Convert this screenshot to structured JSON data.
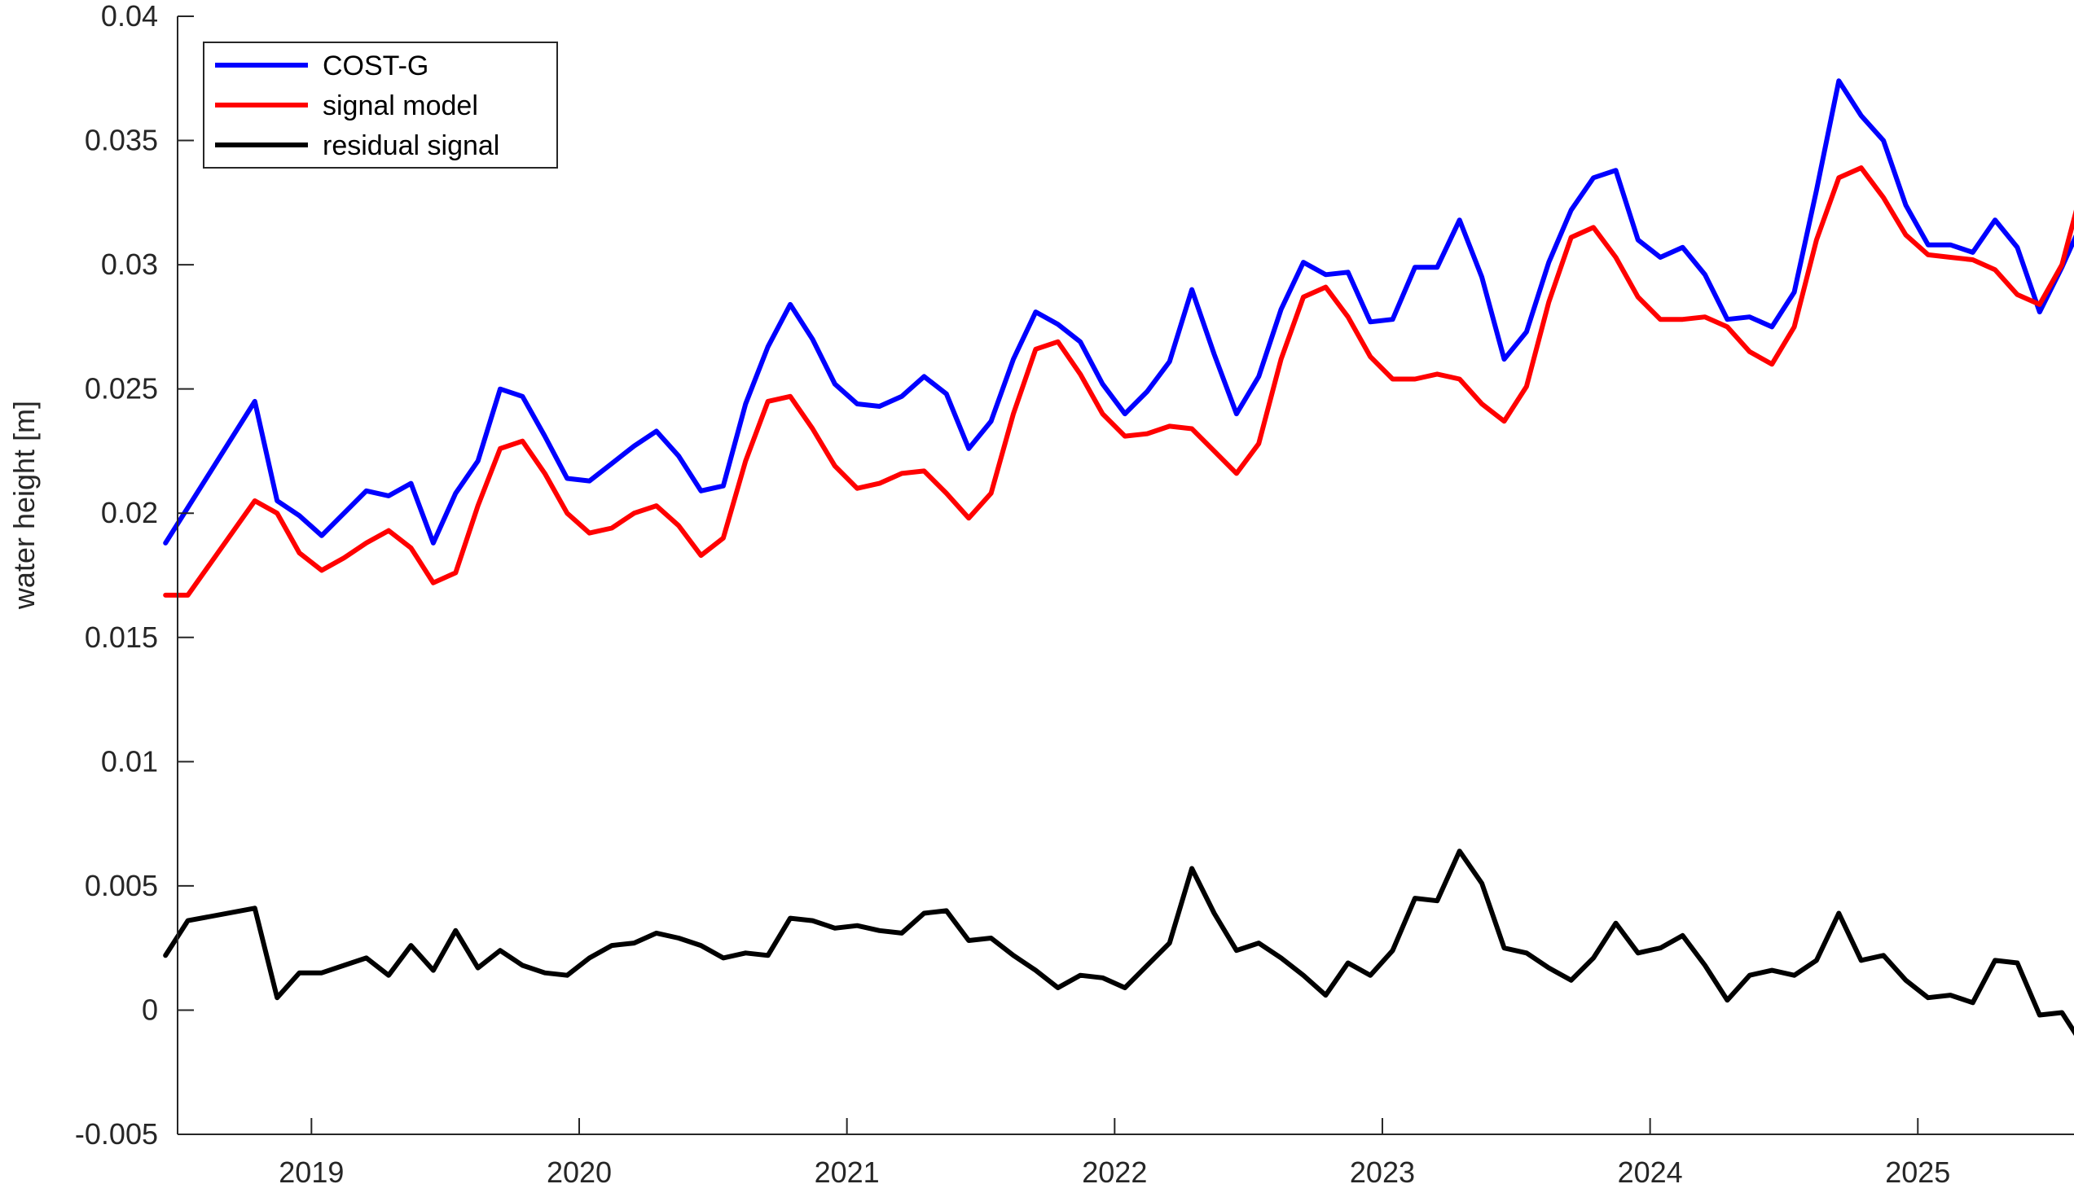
{
  "chart_data": {
    "type": "line",
    "ylabel": "water height [m]",
    "xlabel": "",
    "title": "",
    "ylim": [
      -0.005,
      0.04
    ],
    "xlim": [
      "2018-07",
      "2025-08"
    ],
    "yticks": [
      -0.005,
      0,
      0.005,
      0.01,
      0.015,
      0.02,
      0.025,
      0.03,
      0.035,
      0.04
    ],
    "ytick_labels": [
      "-0.005",
      "0",
      "0.005",
      "0.01",
      "0.015",
      "0.02",
      "0.025",
      "0.03",
      "0.035",
      "0.04"
    ],
    "xticks": [
      "2019-01",
      "2020-01",
      "2021-01",
      "2022-01",
      "2023-01",
      "2024-01",
      "2025-01"
    ],
    "xtick_labels": [
      "2019",
      "2020",
      "2021",
      "2022",
      "2023",
      "2024",
      "2025"
    ],
    "grid": false,
    "legend_position": "top-left",
    "series": [
      {
        "name": "COST-G",
        "color": "#0000ff",
        "points": [
          [
            "2018-06-15",
            0.0188
          ],
          [
            "2018-10-15",
            0.0245
          ],
          [
            "2018-11-15",
            0.0205
          ],
          [
            "2018-12-15",
            0.0199
          ],
          [
            "2019-01-15",
            0.0191
          ],
          [
            "2019-02-15",
            0.02
          ],
          [
            "2019-03-15",
            0.0209
          ],
          [
            "2019-04-15",
            0.0207
          ],
          [
            "2019-05-15",
            0.0212
          ],
          [
            "2019-06-15",
            0.0188
          ],
          [
            "2019-07-15",
            0.0208
          ],
          [
            "2019-08-15",
            0.0221
          ],
          [
            "2019-09-15",
            0.025
          ],
          [
            "2019-10-15",
            0.0247
          ],
          [
            "2019-11-15",
            0.0231
          ],
          [
            "2019-12-15",
            0.0214
          ],
          [
            "2020-01-15",
            0.0213
          ],
          [
            "2020-02-15",
            0.022
          ],
          [
            "2020-03-15",
            0.0227
          ],
          [
            "2020-04-15",
            0.0233
          ],
          [
            "2020-05-15",
            0.0223
          ],
          [
            "2020-06-15",
            0.0209
          ],
          [
            "2020-07-15",
            0.0211
          ],
          [
            "2020-08-15",
            0.0244
          ],
          [
            "2020-09-15",
            0.0267
          ],
          [
            "2020-10-15",
            0.0284
          ],
          [
            "2020-11-15",
            0.027
          ],
          [
            "2020-12-15",
            0.0252
          ],
          [
            "2021-01-15",
            0.0244
          ],
          [
            "2021-02-15",
            0.0243
          ],
          [
            "2021-03-15",
            0.0247
          ],
          [
            "2021-04-15",
            0.0255
          ],
          [
            "2021-05-15",
            0.0248
          ],
          [
            "2021-06-15",
            0.0226
          ],
          [
            "2021-07-15",
            0.0237
          ],
          [
            "2021-08-15",
            0.0262
          ],
          [
            "2021-09-15",
            0.0281
          ],
          [
            "2021-10-15",
            0.0276
          ],
          [
            "2021-11-15",
            0.0269
          ],
          [
            "2021-12-15",
            0.0252
          ],
          [
            "2022-01-15",
            0.024
          ],
          [
            "2022-02-15",
            0.0249
          ],
          [
            "2022-03-15",
            0.0261
          ],
          [
            "2022-04-15",
            0.029
          ],
          [
            "2022-05-15",
            0.0264
          ],
          [
            "2022-06-15",
            0.024
          ],
          [
            "2022-07-15",
            0.0255
          ],
          [
            "2022-08-15",
            0.0282
          ],
          [
            "2022-09-15",
            0.0301
          ],
          [
            "2022-10-15",
            0.0296
          ],
          [
            "2022-11-15",
            0.0297
          ],
          [
            "2022-12-15",
            0.0277
          ],
          [
            "2023-01-15",
            0.0278
          ],
          [
            "2023-02-15",
            0.0299
          ],
          [
            "2023-03-15",
            0.0299
          ],
          [
            "2023-04-15",
            0.0318
          ],
          [
            "2023-05-15",
            0.0295
          ],
          [
            "2023-06-15",
            0.0262
          ],
          [
            "2023-07-15",
            0.0273
          ],
          [
            "2023-08-15",
            0.0301
          ],
          [
            "2023-09-15",
            0.0322
          ],
          [
            "2023-10-15",
            0.0335
          ],
          [
            "2023-11-15",
            0.0338
          ],
          [
            "2023-12-15",
            0.031
          ],
          [
            "2024-01-15",
            0.0303
          ],
          [
            "2024-02-15",
            0.0307
          ],
          [
            "2024-03-15",
            0.0296
          ],
          [
            "2024-04-15",
            0.0278
          ],
          [
            "2024-05-15",
            0.0279
          ],
          [
            "2024-06-15",
            0.0275
          ],
          [
            "2024-07-15",
            0.0289
          ],
          [
            "2024-08-15",
            0.033
          ],
          [
            "2024-09-15",
            0.0374
          ],
          [
            "2024-10-15",
            0.036
          ],
          [
            "2024-11-15",
            0.035
          ],
          [
            "2024-12-15",
            0.0324
          ],
          [
            "2025-01-15",
            0.0308
          ],
          [
            "2025-02-15",
            0.0308
          ],
          [
            "2025-03-15",
            0.0305
          ],
          [
            "2025-04-15",
            0.0318
          ],
          [
            "2025-05-15",
            0.0307
          ],
          [
            "2025-06-15",
            0.0281
          ],
          [
            "2025-07-15",
            0.0299
          ],
          [
            "2025-08-15",
            0.0319
          ]
        ]
      },
      {
        "name": "signal model",
        "color": "#ff0000",
        "points": [
          [
            "2018-06-15",
            0.0167
          ],
          [
            "2018-07-15",
            0.0167
          ],
          [
            "2018-10-15",
            0.0205
          ],
          [
            "2018-11-15",
            0.02
          ],
          [
            "2018-12-15",
            0.0184
          ],
          [
            "2019-01-15",
            0.0177
          ],
          [
            "2019-02-15",
            0.0182
          ],
          [
            "2019-03-15",
            0.0188
          ],
          [
            "2019-04-15",
            0.0193
          ],
          [
            "2019-05-15",
            0.0186
          ],
          [
            "2019-06-15",
            0.0172
          ],
          [
            "2019-07-15",
            0.0176
          ],
          [
            "2019-08-15",
            0.0203
          ],
          [
            "2019-09-15",
            0.0226
          ],
          [
            "2019-10-15",
            0.0229
          ],
          [
            "2019-11-15",
            0.0216
          ],
          [
            "2019-12-15",
            0.02
          ],
          [
            "2020-01-15",
            0.0192
          ],
          [
            "2020-02-15",
            0.0194
          ],
          [
            "2020-03-15",
            0.02
          ],
          [
            "2020-04-15",
            0.0203
          ],
          [
            "2020-05-15",
            0.0195
          ],
          [
            "2020-06-15",
            0.0183
          ],
          [
            "2020-07-15",
            0.019
          ],
          [
            "2020-08-15",
            0.0221
          ],
          [
            "2020-09-15",
            0.0245
          ],
          [
            "2020-10-15",
            0.0247
          ],
          [
            "2020-11-15",
            0.0234
          ],
          [
            "2020-12-15",
            0.0219
          ],
          [
            "2021-01-15",
            0.021
          ],
          [
            "2021-02-15",
            0.0212
          ],
          [
            "2021-03-15",
            0.0216
          ],
          [
            "2021-04-15",
            0.0217
          ],
          [
            "2021-05-15",
            0.0208
          ],
          [
            "2021-06-15",
            0.0198
          ],
          [
            "2021-07-15",
            0.0208
          ],
          [
            "2021-08-15",
            0.024
          ],
          [
            "2021-09-15",
            0.0266
          ],
          [
            "2021-10-15",
            0.0269
          ],
          [
            "2021-11-15",
            0.0256
          ],
          [
            "2021-12-15",
            0.024
          ],
          [
            "2022-01-15",
            0.0231
          ],
          [
            "2022-02-15",
            0.0232
          ],
          [
            "2022-03-15",
            0.0235
          ],
          [
            "2022-04-15",
            0.0234
          ],
          [
            "2022-05-15",
            0.0225
          ],
          [
            "2022-06-15",
            0.0216
          ],
          [
            "2022-07-15",
            0.0228
          ],
          [
            "2022-08-15",
            0.0262
          ],
          [
            "2022-09-15",
            0.0287
          ],
          [
            "2022-10-15",
            0.0291
          ],
          [
            "2022-11-15",
            0.0279
          ],
          [
            "2022-12-15",
            0.0263
          ],
          [
            "2023-01-15",
            0.0254
          ],
          [
            "2023-02-15",
            0.0254
          ],
          [
            "2023-03-15",
            0.0256
          ],
          [
            "2023-04-15",
            0.0254
          ],
          [
            "2023-05-15",
            0.0244
          ],
          [
            "2023-06-15",
            0.0237
          ],
          [
            "2023-07-15",
            0.0251
          ],
          [
            "2023-08-15",
            0.0285
          ],
          [
            "2023-09-15",
            0.0311
          ],
          [
            "2023-10-15",
            0.0315
          ],
          [
            "2023-11-15",
            0.0303
          ],
          [
            "2023-12-15",
            0.0287
          ],
          [
            "2024-01-15",
            0.0278
          ],
          [
            "2024-02-15",
            0.0278
          ],
          [
            "2024-03-15",
            0.0279
          ],
          [
            "2024-04-15",
            0.0275
          ],
          [
            "2024-05-15",
            0.0265
          ],
          [
            "2024-06-15",
            0.026
          ],
          [
            "2024-07-15",
            0.0275
          ],
          [
            "2024-08-15",
            0.031
          ],
          [
            "2024-09-15",
            0.0335
          ],
          [
            "2024-10-15",
            0.0339
          ],
          [
            "2024-11-15",
            0.0327
          ],
          [
            "2024-12-15",
            0.0312
          ],
          [
            "2025-01-15",
            0.0304
          ],
          [
            "2025-02-15",
            0.0303
          ],
          [
            "2025-03-15",
            0.0302
          ],
          [
            "2025-04-15",
            0.0298
          ],
          [
            "2025-05-15",
            0.0288
          ],
          [
            "2025-06-15",
            0.0284
          ],
          [
            "2025-07-15",
            0.03
          ],
          [
            "2025-08-15",
            0.0334
          ]
        ]
      },
      {
        "name": "residual signal",
        "color": "#000000",
        "points": [
          [
            "2018-06-15",
            0.0022
          ],
          [
            "2018-07-15",
            0.0036
          ],
          [
            "2018-10-15",
            0.0041
          ],
          [
            "2018-11-15",
            0.0005
          ],
          [
            "2018-12-15",
            0.0015
          ],
          [
            "2019-01-15",
            0.0015
          ],
          [
            "2019-02-15",
            0.0018
          ],
          [
            "2019-03-15",
            0.0021
          ],
          [
            "2019-04-15",
            0.0014
          ],
          [
            "2019-05-15",
            0.0026
          ],
          [
            "2019-06-15",
            0.0016
          ],
          [
            "2019-07-15",
            0.0032
          ],
          [
            "2019-08-15",
            0.0017
          ],
          [
            "2019-09-15",
            0.0024
          ],
          [
            "2019-10-15",
            0.0018
          ],
          [
            "2019-11-15",
            0.0015
          ],
          [
            "2019-12-15",
            0.0014
          ],
          [
            "2020-01-15",
            0.0021
          ],
          [
            "2020-02-15",
            0.0026
          ],
          [
            "2020-03-15",
            0.0027
          ],
          [
            "2020-04-15",
            0.0031
          ],
          [
            "2020-05-15",
            0.0029
          ],
          [
            "2020-06-15",
            0.0026
          ],
          [
            "2020-07-15",
            0.0021
          ],
          [
            "2020-08-15",
            0.0023
          ],
          [
            "2020-09-15",
            0.0022
          ],
          [
            "2020-10-15",
            0.0037
          ],
          [
            "2020-11-15",
            0.0036
          ],
          [
            "2020-12-15",
            0.0033
          ],
          [
            "2021-01-15",
            0.0034
          ],
          [
            "2021-02-15",
            0.0032
          ],
          [
            "2021-03-15",
            0.0031
          ],
          [
            "2021-04-15",
            0.0039
          ],
          [
            "2021-05-15",
            0.004
          ],
          [
            "2021-06-15",
            0.0028
          ],
          [
            "2021-07-15",
            0.0029
          ],
          [
            "2021-08-15",
            0.0022
          ],
          [
            "2021-09-15",
            0.0016
          ],
          [
            "2021-10-15",
            0.0009
          ],
          [
            "2021-11-15",
            0.0014
          ],
          [
            "2021-12-15",
            0.0013
          ],
          [
            "2022-01-15",
            0.0009
          ],
          [
            "2022-02-15",
            0.0018
          ],
          [
            "2022-03-15",
            0.0027
          ],
          [
            "2022-04-15",
            0.0057
          ],
          [
            "2022-05-15",
            0.0039
          ],
          [
            "2022-06-15",
            0.0024
          ],
          [
            "2022-07-15",
            0.0027
          ],
          [
            "2022-08-15",
            0.0021
          ],
          [
            "2022-09-15",
            0.0014
          ],
          [
            "2022-10-15",
            0.0006
          ],
          [
            "2022-11-15",
            0.0019
          ],
          [
            "2022-12-15",
            0.0014
          ],
          [
            "2023-01-15",
            0.0024
          ],
          [
            "2023-02-15",
            0.0045
          ],
          [
            "2023-03-15",
            0.0044
          ],
          [
            "2023-04-15",
            0.0064
          ],
          [
            "2023-05-15",
            0.0051
          ],
          [
            "2023-06-15",
            0.0025
          ],
          [
            "2023-07-15",
            0.0023
          ],
          [
            "2023-08-15",
            0.0017
          ],
          [
            "2023-09-15",
            0.0012
          ],
          [
            "2023-10-15",
            0.0021
          ],
          [
            "2023-11-15",
            0.0035
          ],
          [
            "2023-12-15",
            0.0023
          ],
          [
            "2024-01-15",
            0.0025
          ],
          [
            "2024-02-15",
            0.003
          ],
          [
            "2024-03-15",
            0.0018
          ],
          [
            "2024-04-15",
            0.0004
          ],
          [
            "2024-05-15",
            0.0014
          ],
          [
            "2024-06-15",
            0.0016
          ],
          [
            "2024-07-15",
            0.0014
          ],
          [
            "2024-08-15",
            0.002
          ],
          [
            "2024-09-15",
            0.0039
          ],
          [
            "2024-10-15",
            0.002
          ],
          [
            "2024-11-15",
            0.0022
          ],
          [
            "2024-12-15",
            0.0012
          ],
          [
            "2025-01-15",
            0.0005
          ],
          [
            "2025-02-15",
            0.0006
          ],
          [
            "2025-03-15",
            0.0003
          ],
          [
            "2025-04-15",
            0.002
          ],
          [
            "2025-05-15",
            0.0019
          ],
          [
            "2025-06-15",
            -0.0002
          ],
          [
            "2025-07-15",
            -0.0001
          ],
          [
            "2025-08-15",
            -0.0015
          ]
        ]
      }
    ]
  }
}
